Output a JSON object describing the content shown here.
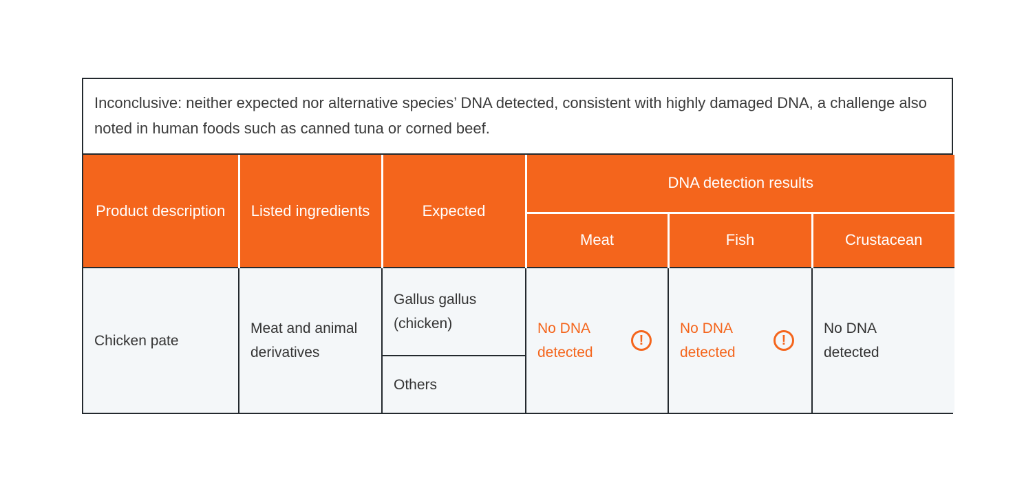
{
  "colors": {
    "accent_orange": "#f4651c",
    "border_dark": "#23292e",
    "body_cell_bg": "#f4f7f9"
  },
  "note": {
    "text": "Inconclusive: neither expected nor alternative species’ DNA detected, consistent with highly damaged DNA, a challenge also noted in human foods such as canned tuna or corned beef."
  },
  "table": {
    "headers": {
      "product": "Product description",
      "ingredients": "Listed ingredients",
      "expected": "Expected",
      "dna_group": "DNA detection results",
      "meat": "Meat",
      "fish": "Fish",
      "crustacean": "Crustacean"
    },
    "row": {
      "product": "Chicken pate",
      "ingredients": "Meat and animal derivatives",
      "expected_primary": "Gallus gallus (chicken)",
      "expected_secondary": "Others",
      "meat_result": "No DNA detected",
      "fish_result": "No DNA detected",
      "crustacean_result": "No DNA detected",
      "warning_glyph": "!"
    }
  }
}
